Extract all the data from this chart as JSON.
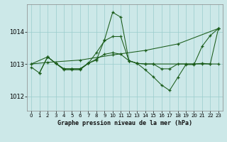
{
  "title": "Graphe pression niveau de la mer (hPa)",
  "bg_color": "#cce8e8",
  "grid_color": "#99cccc",
  "line_color": "#1a5c1a",
  "xlim": [
    -0.5,
    23.5
  ],
  "ylim": [
    1011.55,
    1014.85
  ],
  "yticks": [
    1012,
    1013,
    1014
  ],
  "xticks": [
    0,
    1,
    2,
    3,
    4,
    5,
    6,
    7,
    8,
    9,
    10,
    11,
    12,
    13,
    14,
    15,
    16,
    17,
    18,
    19,
    20,
    21,
    22,
    23
  ],
  "series": [
    {
      "x": [
        0,
        1,
        2,
        3,
        4,
        5,
        6,
        7,
        8,
        9,
        10,
        11,
        12,
        13,
        14,
        15,
        16,
        17,
        18,
        19,
        20,
        21,
        22,
        23
      ],
      "y": [
        1012.9,
        1012.72,
        1013.22,
        1013.02,
        1012.82,
        1012.82,
        1012.82,
        1013.02,
        1013.12,
        1013.75,
        1014.6,
        1014.45,
        1013.1,
        1013.02,
        1012.82,
        1012.6,
        1012.35,
        1012.18,
        1012.58,
        1012.98,
        1012.98,
        1013.55,
        1013.88,
        1014.1
      ]
    },
    {
      "x": [
        0,
        2,
        6,
        10,
        14,
        18,
        23
      ],
      "y": [
        1013.0,
        1013.05,
        1013.12,
        1013.28,
        1013.42,
        1013.62,
        1014.1
      ]
    },
    {
      "x": [
        0,
        2,
        3,
        4,
        5,
        6,
        7,
        8,
        9,
        10,
        11,
        12,
        13,
        14,
        15,
        16,
        17,
        18,
        19,
        20,
        21,
        22,
        23
      ],
      "y": [
        1013.0,
        1013.22,
        1013.02,
        1012.85,
        1012.85,
        1012.85,
        1013.02,
        1013.15,
        1013.3,
        1013.35,
        1013.3,
        1013.1,
        1013.02,
        1013.0,
        1013.0,
        1012.85,
        1012.85,
        1013.0,
        1013.0,
        1013.0,
        1013.02,
        1013.0,
        1013.0
      ]
    },
    {
      "x": [
        1,
        2,
        3,
        4,
        5,
        6,
        7,
        8,
        9,
        10,
        11,
        12,
        13,
        14,
        15,
        20,
        21,
        22,
        23
      ],
      "y": [
        1012.72,
        1013.22,
        1013.02,
        1012.85,
        1012.85,
        1012.85,
        1013.02,
        1013.35,
        1013.72,
        1013.85,
        1013.85,
        1013.1,
        1013.02,
        1013.0,
        1013.0,
        1013.0,
        1013.0,
        1013.0,
        1014.1
      ]
    }
  ]
}
